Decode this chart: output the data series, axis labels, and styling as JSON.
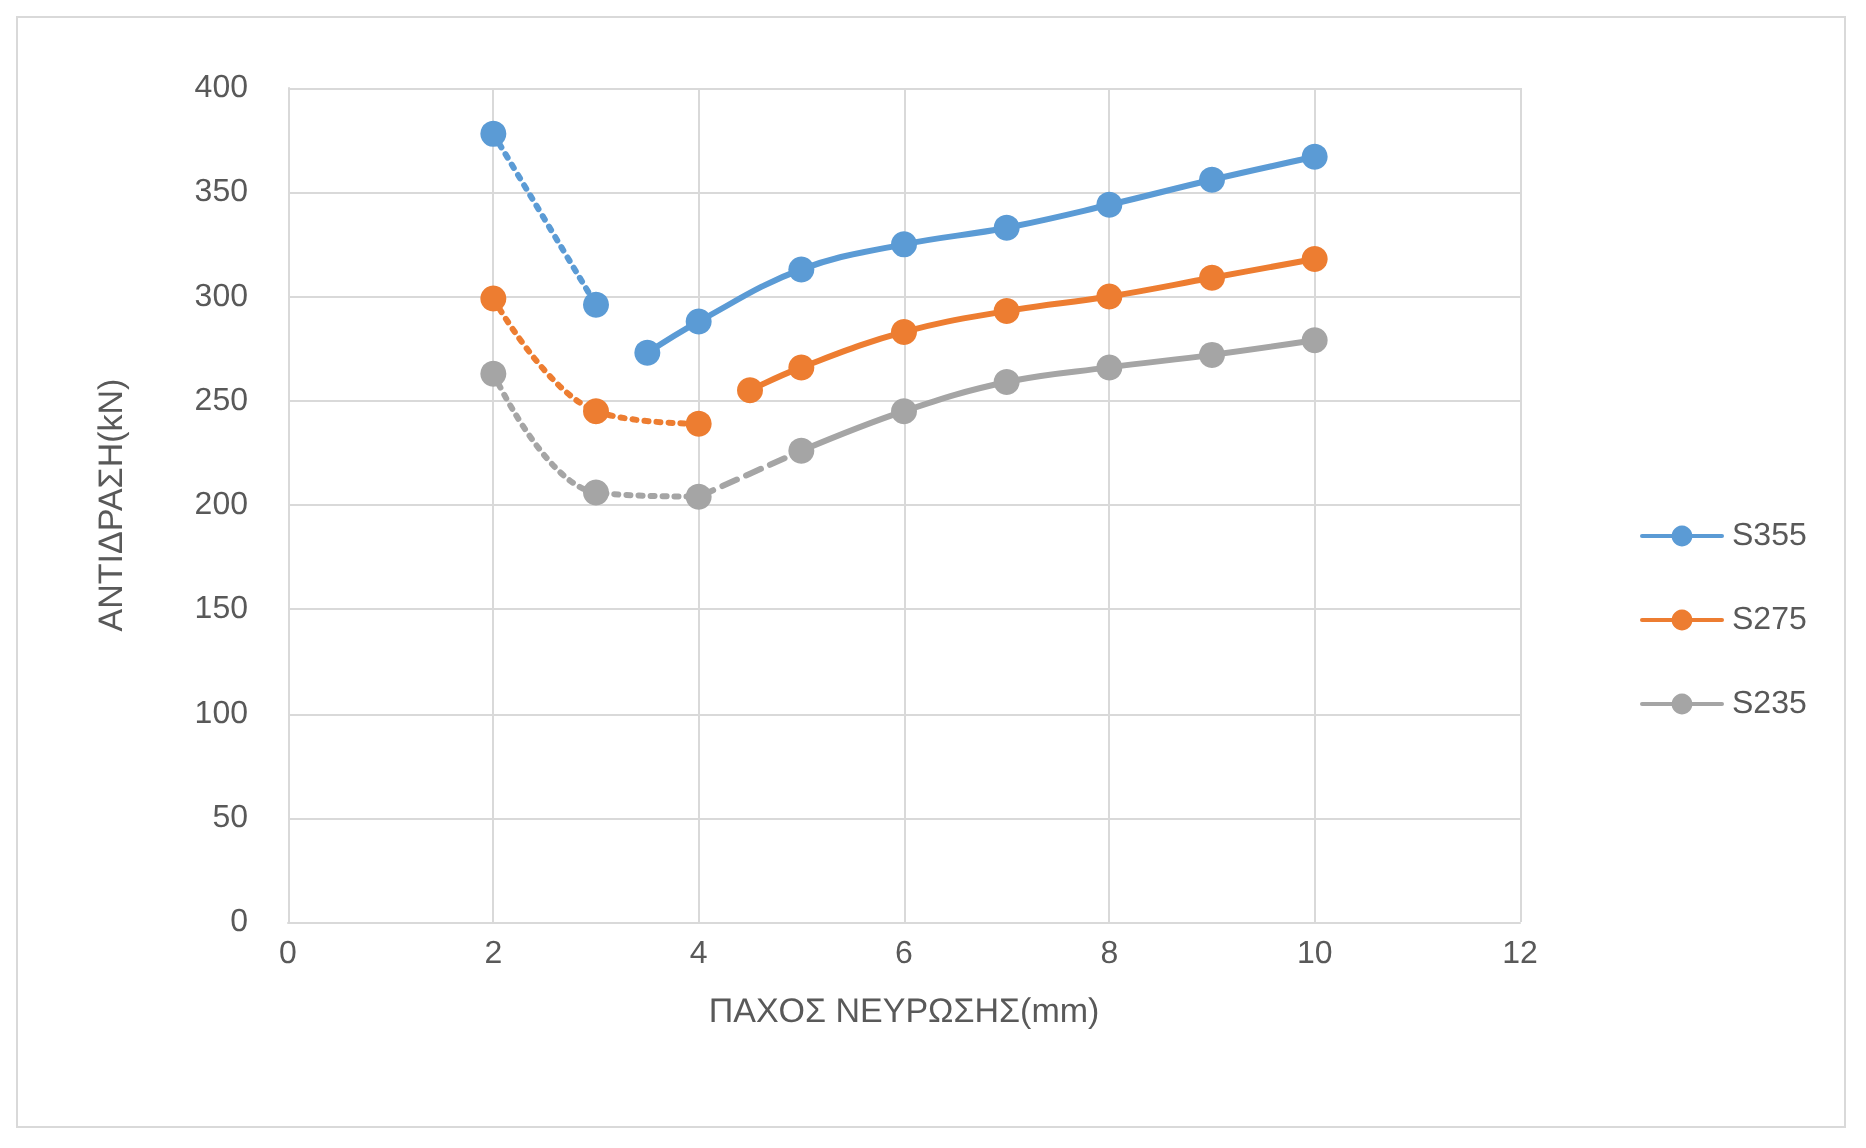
{
  "chart_data": {
    "type": "line",
    "xlabel": "ΠΑΧΟΣ ΝΕΥΡΩΣΗΣ(mm)",
    "ylabel": "ΑΝΤΙΔΡΑΣΗ(kN)",
    "xlim": [
      0,
      12
    ],
    "xticks": [
      0,
      2,
      4,
      6,
      8,
      10,
      12
    ],
    "ylim": [
      0,
      400
    ],
    "yticks": [
      0,
      50,
      100,
      150,
      200,
      250,
      300,
      350,
      400
    ],
    "grid": true,
    "legend": "right",
    "marker": "circle",
    "line_style": "solid",
    "series": [
      {
        "name": "S355",
        "color": "#5b9bd5",
        "x": [
          3.5,
          4,
          5,
          6,
          7,
          8,
          9,
          10
        ],
        "values": [
          273,
          288,
          313,
          325,
          333,
          344,
          356,
          367
        ]
      },
      {
        "name": "S275",
        "color": "#ed7d31",
        "x": [
          4.5,
          5,
          6,
          7,
          8,
          9,
          10
        ],
        "values": [
          255,
          266,
          283,
          293,
          300,
          309,
          318
        ]
      },
      {
        "name": "S235",
        "color": "#a5a5a5",
        "x": [
          5,
          6,
          7,
          8,
          9,
          10
        ],
        "values": [
          226,
          245,
          259,
          266,
          272,
          279
        ]
      },
      {
        "color": "#5b9bd5",
        "line_style": "dotted",
        "x": [
          2,
          3
        ],
        "values": [
          378,
          296
        ]
      },
      {
        "color": "#ed7d31",
        "line_style": "dotted",
        "x": [
          2,
          3,
          4
        ],
        "values": [
          299,
          245,
          239
        ]
      },
      {
        "color": "#a5a5a5",
        "line_style": "dotted",
        "x": [
          2,
          3,
          4
        ],
        "values": [
          263,
          206,
          204
        ]
      },
      {
        "color": "#a5a5a5",
        "line_style": "dashed",
        "marker": "none",
        "x": [
          4,
          5
        ],
        "values": [
          204,
          226
        ]
      }
    ]
  }
}
